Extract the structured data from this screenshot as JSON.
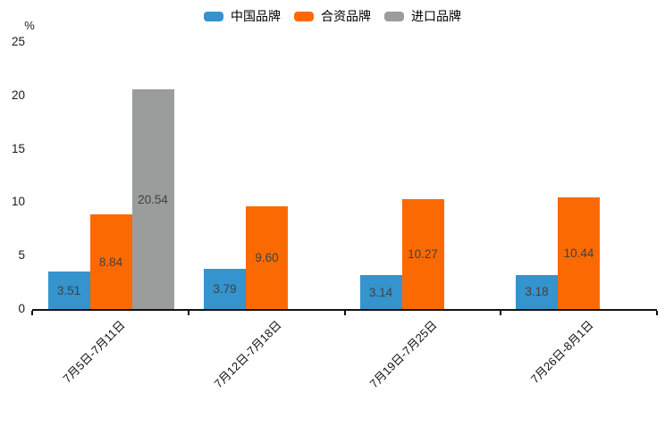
{
  "chart_data": {
    "type": "bar",
    "title": "",
    "ylabel": "%",
    "xlabel": "",
    "categories": [
      "7月5日-7月11日",
      "7月12日-7月18日",
      "7月19日-7月25日",
      "7月26日-8月1日"
    ],
    "series": [
      {
        "id": "china-brand",
        "name": "中国品牌",
        "color": "#3593cd",
        "values": [
          3.51,
          3.79,
          3.14,
          3.18
        ]
      },
      {
        "id": "joint-venture-brand",
        "name": "合资品牌",
        "color": "#fb6a02",
        "values": [
          8.84,
          9.6,
          10.27,
          10.44
        ]
      },
      {
        "id": "import-brand",
        "name": "进口品牌",
        "color": "#9b9c9c",
        "values": [
          20.54,
          null,
          null,
          null
        ]
      }
    ],
    "value_label_decimals": 2,
    "ylim": [
      0,
      25
    ],
    "yticks": [
      0,
      5,
      10,
      15,
      20,
      25
    ],
    "legend_position": "top-center",
    "grid": false,
    "axis_color": "#111111"
  }
}
